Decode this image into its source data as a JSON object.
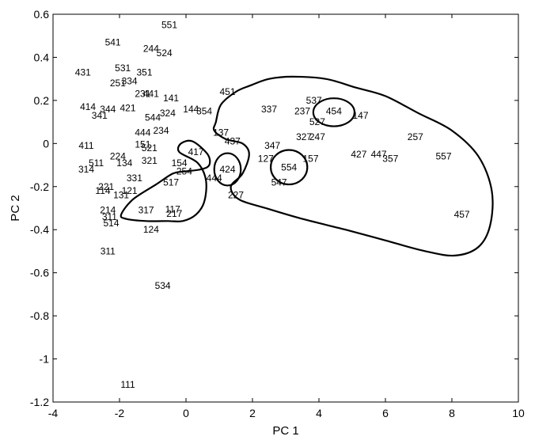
{
  "chart_data": {
    "type": "scatter",
    "title": "",
    "xlabel": "PC 1",
    "ylabel": "PC 2",
    "xlim": [
      -4,
      10
    ],
    "ylim": [
      -1.2,
      0.6
    ],
    "xticks": [
      "-4",
      "-2",
      "0",
      "2",
      "4",
      "6",
      "8",
      "10"
    ],
    "yticks": [
      "0.6",
      "0.4",
      "0.2",
      "0",
      "-0.2",
      "-0.4",
      "-0.6",
      "-0.8",
      "-1",
      "-1.2"
    ],
    "grid": false,
    "legend": "none",
    "points": [
      {
        "label": "551",
        "x": -0.5,
        "y": 0.55
      },
      {
        "label": "541",
        "x": -2.2,
        "y": 0.47
      },
      {
        "label": "244",
        "x": -1.05,
        "y": 0.44
      },
      {
        "label": "524",
        "x": -0.65,
        "y": 0.42
      },
      {
        "label": "431",
        "x": -3.1,
        "y": 0.33
      },
      {
        "label": "531",
        "x": -1.9,
        "y": 0.35
      },
      {
        "label": "351",
        "x": -1.25,
        "y": 0.33
      },
      {
        "label": "334",
        "x": -1.7,
        "y": 0.29
      },
      {
        "label": "251",
        "x": -2.05,
        "y": 0.28
      },
      {
        "label": "231",
        "x": -1.3,
        "y": 0.23
      },
      {
        "label": "441",
        "x": -1.05,
        "y": 0.23
      },
      {
        "label": "141",
        "x": -0.45,
        "y": 0.21
      },
      {
        "label": "451",
        "x": 1.25,
        "y": 0.24
      },
      {
        "label": "414",
        "x": -2.95,
        "y": 0.17
      },
      {
        "label": "344",
        "x": -2.35,
        "y": 0.16
      },
      {
        "label": "421",
        "x": -1.75,
        "y": 0.165
      },
      {
        "label": "341",
        "x": -2.6,
        "y": 0.13
      },
      {
        "label": "544",
        "x": -1.0,
        "y": 0.12
      },
      {
        "label": "324",
        "x": -0.55,
        "y": 0.14
      },
      {
        "label": "144",
        "x": 0.15,
        "y": 0.16
      },
      {
        "label": "354",
        "x": 0.55,
        "y": 0.15
      },
      {
        "label": "337",
        "x": 2.5,
        "y": 0.16
      },
      {
        "label": "237",
        "x": 3.5,
        "y": 0.15
      },
      {
        "label": "537",
        "x": 3.85,
        "y": 0.2
      },
      {
        "label": "454",
        "x": 4.45,
        "y": 0.15
      },
      {
        "label": "147",
        "x": 5.25,
        "y": 0.13
      },
      {
        "label": "527",
        "x": 3.95,
        "y": 0.1
      },
      {
        "label": "234",
        "x": -0.75,
        "y": 0.06
      },
      {
        "label": "444",
        "x": -1.3,
        "y": 0.05
      },
      {
        "label": "137",
        "x": 1.05,
        "y": 0.05
      },
      {
        "label": "327",
        "x": 3.55,
        "y": 0.03
      },
      {
        "label": "247",
        "x": 3.95,
        "y": 0.03
      },
      {
        "label": "257",
        "x": 6.9,
        "y": 0.03
      },
      {
        "label": "411",
        "x": -3.0,
        "y": -0.01
      },
      {
        "label": "151",
        "x": -1.3,
        "y": -0.005
      },
      {
        "label": "521",
        "x": -1.1,
        "y": -0.02
      },
      {
        "label": "437",
        "x": 1.4,
        "y": 0.01
      },
      {
        "label": "347",
        "x": 2.6,
        "y": -0.01
      },
      {
        "label": "417",
        "x": 0.3,
        "y": -0.04
      },
      {
        "label": "224",
        "x": -2.05,
        "y": -0.06
      },
      {
        "label": "427",
        "x": 5.2,
        "y": -0.05
      },
      {
        "label": "447",
        "x": 5.8,
        "y": -0.05
      },
      {
        "label": "357",
        "x": 6.15,
        "y": -0.07
      },
      {
        "label": "557",
        "x": 7.75,
        "y": -0.06
      },
      {
        "label": "127",
        "x": 2.4,
        "y": -0.07
      },
      {
        "label": "157",
        "x": 3.75,
        "y": -0.07
      },
      {
        "label": "511",
        "x": -2.7,
        "y": -0.09
      },
      {
        "label": "134",
        "x": -1.85,
        "y": -0.09
      },
      {
        "label": "321",
        "x": -1.1,
        "y": -0.08
      },
      {
        "label": "154",
        "x": -0.2,
        "y": -0.09
      },
      {
        "label": "314",
        "x": -3.0,
        "y": -0.12
      },
      {
        "label": "254",
        "x": -0.05,
        "y": -0.13
      },
      {
        "label": "424",
        "x": 1.25,
        "y": -0.12
      },
      {
        "label": "554",
        "x": 3.1,
        "y": -0.11
      },
      {
        "label": "331",
        "x": -1.55,
        "y": -0.16
      },
      {
        "label": "444",
        "x": 0.85,
        "y": -0.16
      },
      {
        "label": "547",
        "x": 2.8,
        "y": -0.18
      },
      {
        "label": "517",
        "x": -0.45,
        "y": -0.18
      },
      {
        "label": "221",
        "x": -2.4,
        "y": -0.2
      },
      {
        "label": "114",
        "x": -2.5,
        "y": -0.22
      },
      {
        "label": "121",
        "x": -1.7,
        "y": -0.22
      },
      {
        "label": "131",
        "x": -1.95,
        "y": -0.24
      },
      {
        "label": "227",
        "x": 1.5,
        "y": -0.24
      },
      {
        "label": "214",
        "x": -2.35,
        "y": -0.31
      },
      {
        "label": "317",
        "x": -1.2,
        "y": -0.31
      },
      {
        "label": "117",
        "x": -0.4,
        "y": -0.305
      },
      {
        "label": "217",
        "x": -0.35,
        "y": -0.325
      },
      {
        "label": "311",
        "x": -2.3,
        "y": -0.34
      },
      {
        "label": "514",
        "x": -2.25,
        "y": -0.37
      },
      {
        "label": "457",
        "x": 8.3,
        "y": -0.33
      },
      {
        "label": "124",
        "x": -1.05,
        "y": -0.4
      },
      {
        "label": "311",
        "x": -2.35,
        "y": -0.5
      },
      {
        "label": "534",
        "x": -0.7,
        "y": -0.66
      },
      {
        "label": "111",
        "x": -1.75,
        "y": -1.12
      }
    ],
    "boundaries": [
      {
        "name": "left-lower-region",
        "points": [
          [
            -1.95,
            -0.33
          ],
          [
            -1.6,
            -0.26
          ],
          [
            -0.9,
            -0.19
          ],
          [
            -0.4,
            -0.14
          ],
          [
            -0.05,
            -0.13
          ],
          [
            0.45,
            -0.12
          ],
          [
            0.7,
            -0.1
          ],
          [
            0.65,
            -0.05
          ],
          [
            0.2,
            0.01
          ],
          [
            -0.15,
            0.0
          ],
          [
            -0.2,
            -0.04
          ],
          [
            0.35,
            -0.09
          ],
          [
            0.6,
            -0.17
          ],
          [
            0.55,
            -0.27
          ],
          [
            0.3,
            -0.33
          ],
          [
            -0.1,
            -0.36
          ],
          [
            -0.55,
            -0.36
          ],
          [
            -1.2,
            -0.36
          ],
          [
            -1.8,
            -0.35
          ]
        ]
      },
      {
        "name": "right-region",
        "points": [
          [
            0.9,
            0.1
          ],
          [
            1.05,
            0.18
          ],
          [
            1.5,
            0.24
          ],
          [
            1.95,
            0.27
          ],
          [
            2.5,
            0.3
          ],
          [
            3.2,
            0.31
          ],
          [
            4.2,
            0.3
          ],
          [
            5.1,
            0.26
          ],
          [
            6.0,
            0.22
          ],
          [
            7.0,
            0.14
          ],
          [
            8.0,
            0.06
          ],
          [
            8.8,
            -0.06
          ],
          [
            9.2,
            -0.22
          ],
          [
            9.15,
            -0.38
          ],
          [
            8.8,
            -0.48
          ],
          [
            8.1,
            -0.52
          ],
          [
            7.2,
            -0.5
          ],
          [
            6.0,
            -0.45
          ],
          [
            4.8,
            -0.4
          ],
          [
            3.5,
            -0.35
          ],
          [
            2.4,
            -0.3
          ],
          [
            1.6,
            -0.26
          ],
          [
            1.35,
            -0.2
          ],
          [
            1.7,
            -0.14
          ],
          [
            1.9,
            -0.05
          ],
          [
            1.7,
            0.0
          ],
          [
            1.2,
            0.02
          ],
          [
            0.85,
            0.06
          ]
        ]
      },
      {
        "name": "ellipse-424",
        "center": [
          1.25,
          -0.12
        ],
        "radius": [
          0.4,
          0.075
        ]
      },
      {
        "name": "ellipse-554",
        "center": [
          3.1,
          -0.11
        ],
        "radius": [
          0.55,
          0.08
        ]
      },
      {
        "name": "ellipse-454",
        "center": [
          4.45,
          0.145
        ],
        "radius": [
          0.62,
          0.065
        ]
      }
    ]
  }
}
